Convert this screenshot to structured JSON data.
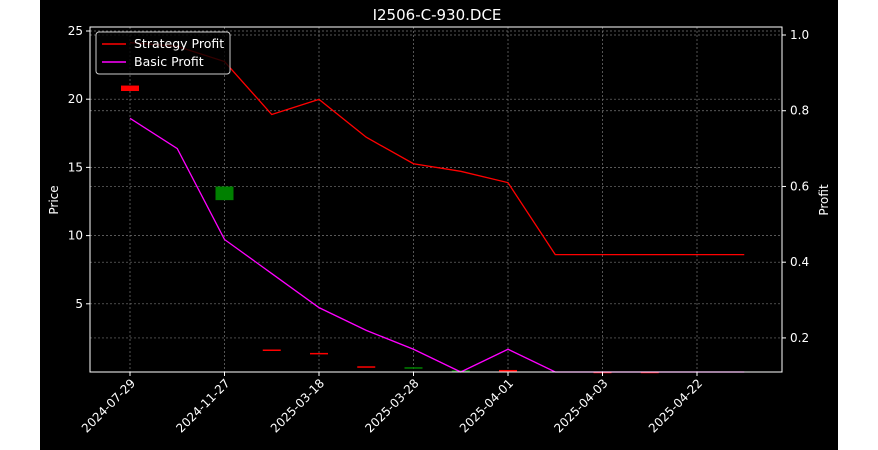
{
  "chart_data": {
    "type": "line",
    "title": "I2506-C-930.DCE",
    "ylabel_left": "Price",
    "ylabel_right": "Profit",
    "xlabel": "",
    "categories": [
      "2024-07-29",
      "2024-11-27",
      "2025-03-18",
      "2025-03-28",
      "2025-04-01",
      "2025-04-03",
      "2025-04-22"
    ],
    "ylim_left": [
      0,
      25
    ],
    "yticks_left": [
      "5",
      "10",
      "15",
      "20",
      "25"
    ],
    "ylim_right": [
      0.11,
      1.0
    ],
    "yticks_right": [
      "0.2",
      "0.4",
      "0.6",
      "0.8",
      "1.0"
    ],
    "grid": true,
    "legend": {
      "position": "top-left",
      "entries": [
        "Strategy Profit",
        "Basic Profit"
      ]
    },
    "series": [
      {
        "name": "Strategy Profit",
        "color": "#ff0000",
        "axis": "right",
        "x": [
          0,
          0.5,
          1,
          1.5,
          2,
          2.5,
          3,
          3.5,
          4,
          4.5,
          5,
          5.5,
          6,
          6.5
        ],
        "values": [
          0.98,
          0.97,
          0.93,
          0.79,
          0.83,
          0.73,
          0.66,
          0.64,
          0.61,
          0.42,
          0.42,
          0.42,
          0.42,
          0.42
        ]
      },
      {
        "name": "Basic Profit",
        "color": "#ff00ff",
        "axis": "right",
        "x": [
          0,
          0.5,
          1,
          1.5,
          2,
          2.5,
          3,
          3.5,
          4,
          4.5,
          5,
          5.5,
          6,
          6.5
        ],
        "values": [
          0.78,
          0.7,
          0.46,
          0.37,
          0.28,
          0.22,
          0.17,
          0.11,
          0.17,
          0.11,
          0.11,
          0.11,
          0.11,
          0.11
        ]
      }
    ],
    "candles": [
      {
        "x": 0,
        "open": 21.0,
        "close": 20.6,
        "color": "#ff0000"
      },
      {
        "x": 1,
        "open": 12.6,
        "close": 13.6,
        "color": "#008000"
      },
      {
        "x": 1.5,
        "open": 1.65,
        "close": 1.6,
        "color": "#ff0000"
      },
      {
        "x": 2,
        "open": 1.4,
        "close": 1.35,
        "color": "#ff0000"
      },
      {
        "x": 2.5,
        "open": 0.42,
        "close": 0.38,
        "color": "#ff0000"
      },
      {
        "x": 3,
        "open": 0.25,
        "close": 0.35,
        "color": "#008000"
      },
      {
        "x": 3.5,
        "open": 0.05,
        "close": 0.12,
        "color": "#008000"
      },
      {
        "x": 4,
        "open": 0.15,
        "close": 0.05,
        "color": "#ff0000"
      },
      {
        "x": 5,
        "open": 0.02,
        "close": 0.01,
        "color": "#ff0000"
      },
      {
        "x": 5.5,
        "open": 0.02,
        "close": 0.01,
        "color": "#ff0000"
      }
    ]
  }
}
